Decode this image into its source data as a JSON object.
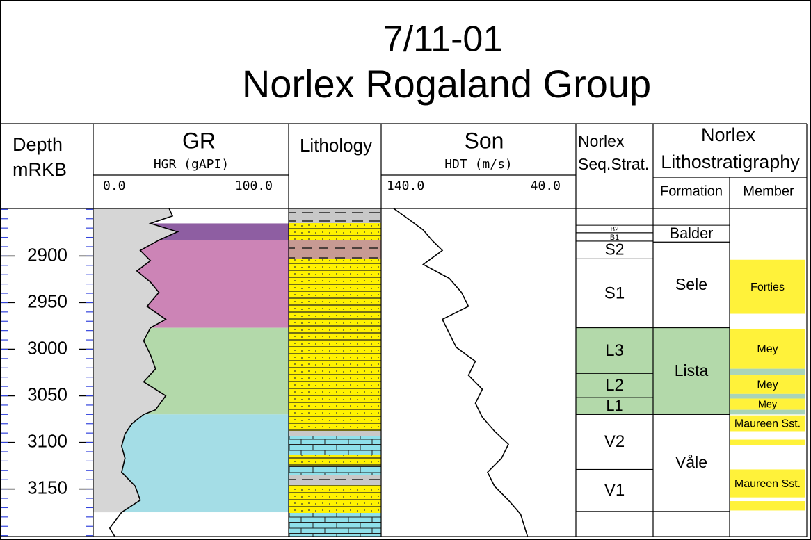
{
  "title": {
    "line1": "7/11-01",
    "line2": "Norlex Rogaland Group"
  },
  "depth": {
    "label1": "Depth",
    "label2": "mRKB",
    "range": [
      2849,
      3201
    ],
    "ticks": [
      2900,
      2950,
      3000,
      3050,
      3100,
      3150
    ]
  },
  "gr": {
    "title": "GR",
    "curve_label": "HGR (gAPI)",
    "scale": [
      {
        "value": 0,
        "label": "0.0"
      },
      {
        "value": 100,
        "label": "100.0"
      }
    ],
    "curve": {
      "depths": [
        2849,
        2857,
        2865,
        2874,
        2883,
        2894,
        2905,
        2916,
        2928,
        2939,
        2954,
        2968,
        2977,
        2991,
        3006,
        3021,
        3035,
        3050,
        3065,
        3070,
        3080,
        3091,
        3104,
        3117,
        3132,
        3147,
        3162,
        3175,
        3192,
        3201
      ],
      "values": [
        39,
        41,
        28,
        44,
        33,
        22,
        28,
        20,
        28,
        33,
        26,
        37,
        28,
        24,
        28,
        31,
        24,
        37,
        31,
        24,
        17,
        13,
        11,
        13,
        11,
        19,
        22,
        11,
        4,
        7
      ]
    },
    "zones": [
      {
        "top": 2865,
        "base": 2883,
        "color": "#8e5ea2"
      },
      {
        "top": 2883,
        "base": 2977,
        "color": "#cc84b6"
      },
      {
        "top": 2977,
        "base": 3070,
        "color": "#b3d9aa"
      },
      {
        "top": 3070,
        "base": 3175,
        "color": "#a4dde6"
      }
    ]
  },
  "lithology": {
    "title": "Lithology"
  },
  "son": {
    "title": "Son",
    "curve_label": "HDT (m/s)",
    "scale": [
      {
        "value": 140,
        "label": "140.0"
      },
      {
        "value": 40,
        "label": "40.0"
      }
    ],
    "curve": {
      "depths": [
        2849,
        2861,
        2872,
        2883,
        2894,
        2909,
        2924,
        2939,
        2954,
        2968,
        2983,
        2998,
        3013,
        3028,
        3043,
        3058,
        3073,
        3088,
        3102,
        3117,
        3132,
        3147,
        3162,
        3177,
        3201
      ],
      "values": [
        136,
        127,
        119,
        114,
        108,
        119,
        104,
        97,
        93,
        108,
        104,
        100,
        89,
        93,
        85,
        89,
        85,
        78,
        70,
        74,
        82,
        78,
        70,
        63,
        59
      ]
    }
  },
  "seq_strat": {
    "title1": "Norlex",
    "title2": "Seq.Strat.",
    "zones": [
      {
        "name": "B2",
        "top": 2867,
        "base": 2875
      },
      {
        "name": "B1",
        "top": 2875,
        "base": 2884
      },
      {
        "name": "S2",
        "top": 2884,
        "base": 2903
      },
      {
        "name": "S1",
        "top": 2903,
        "base": 2977
      },
      {
        "name": "L3",
        "top": 2977,
        "base": 3026,
        "color": "#b3d9aa"
      },
      {
        "name": "L2",
        "top": 3026,
        "base": 3052,
        "color": "#b3d9aa"
      },
      {
        "name": "L1",
        "top": 3052,
        "base": 3070,
        "color": "#b3d9aa"
      },
      {
        "name": "V2",
        "top": 3070,
        "base": 3129
      },
      {
        "name": "V1",
        "top": 3129,
        "base": 3174
      }
    ]
  },
  "lithostratigraphy": {
    "title1": "Norlex",
    "title2": "Lithostratigraphy",
    "formation_header": "Formation",
    "member_header": "Member",
    "formations": [
      {
        "name": "Balder",
        "top": 2867,
        "base": 2885
      },
      {
        "name": "Sele",
        "top": 2885,
        "base": 2977
      },
      {
        "name": "Lista",
        "top": 2977,
        "base": 3070,
        "color": "#b3d9aa"
      },
      {
        "name": "Våle",
        "top": 3070,
        "base": 3174
      }
    ],
    "members": [
      {
        "name": "Forties",
        "top": 2904,
        "base": 2962,
        "color": "#fff23a"
      },
      {
        "name": "Mey",
        "top": 2978,
        "base": 3021,
        "color": "#fff23a"
      },
      {
        "top": 3021,
        "base": 3028,
        "color": "#a9d4b8"
      },
      {
        "name": "Mey",
        "top": 3028,
        "base": 3048,
        "color": "#fff23a"
      },
      {
        "top": 3048,
        "base": 3053,
        "color": "#a9d4b8"
      },
      {
        "name": "Mey",
        "top": 3053,
        "base": 3065,
        "color": "#fff23a"
      },
      {
        "top": 3065,
        "base": 3070,
        "color": "#a9d4b8"
      },
      {
        "name": "Maureen Sst.",
        "top": 3071,
        "base": 3088,
        "color": "#fff23a"
      },
      {
        "top": 3097,
        "base": 3103,
        "color": "#fff23a"
      },
      {
        "name": "Maureen Sst.",
        "top": 3129,
        "base": 3159,
        "color": "#fff23a"
      },
      {
        "top": 3163,
        "base": 3173,
        "color": "#fff23a"
      }
    ]
  }
}
